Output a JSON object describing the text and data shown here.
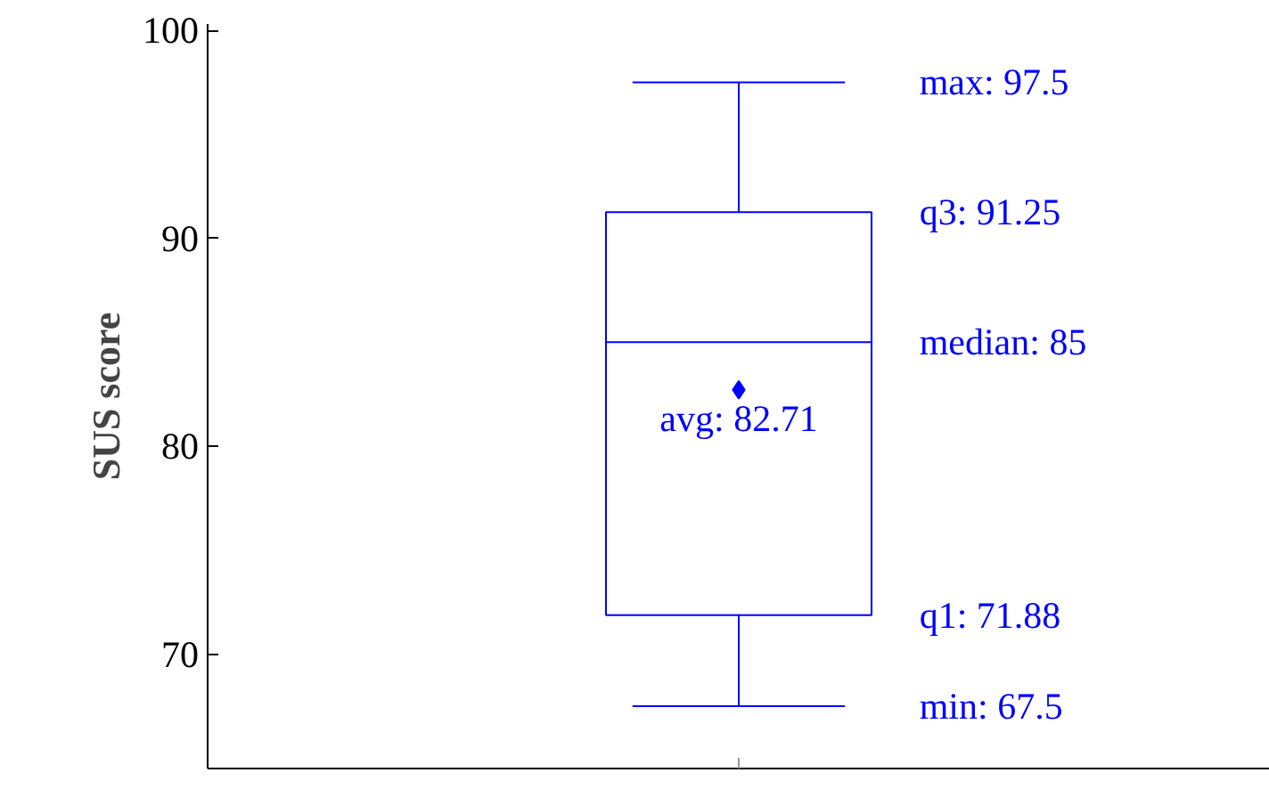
{
  "chart_data": {
    "type": "box",
    "ylabel": "SUS score",
    "categories": [
      null
    ],
    "boxes": [
      {
        "low": 67.5,
        "q1": 71.88,
        "median": 85,
        "q3": 91.25,
        "high": 97.5,
        "mean": 82.71
      }
    ],
    "color": "#0000ff",
    "ylim": [
      64.5,
      100.3
    ],
    "yticks": [
      70,
      80,
      90,
      100
    ],
    "tick_labels": "y",
    "grid": false,
    "marker": "diamond",
    "annotations": [
      "max: 97.5",
      "q3: 91.25",
      "median: 85",
      "avg: 82.71",
      "q1: 71.88",
      "min: 67.5"
    ]
  }
}
